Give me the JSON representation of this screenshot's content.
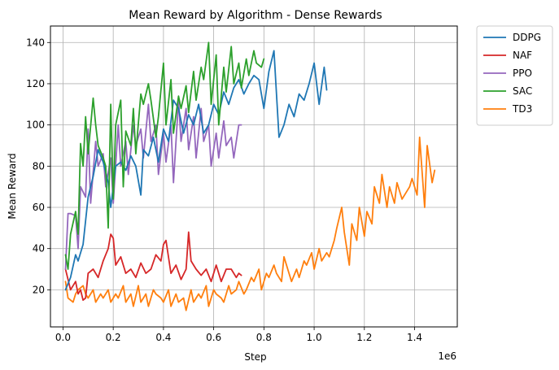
{
  "chart_data": {
    "type": "line",
    "title": "Mean Reward by Algorithm - Dense Rewards",
    "xlabel": "Step",
    "ylabel": "Mean Reward",
    "x_offset_label": "1e6",
    "xlim": [
      -0.05,
      1.57
    ],
    "ylim": [
      2,
      148
    ],
    "xticks": [
      0.0,
      0.2,
      0.4,
      0.6,
      0.8,
      1.0,
      1.2,
      1.4
    ],
    "xtick_labels": [
      "0.0",
      "0.2",
      "0.4",
      "0.6",
      "0.8",
      "1.0",
      "1.2",
      "1.4"
    ],
    "yticks": [
      20,
      40,
      60,
      80,
      100,
      120,
      140
    ],
    "ytick_labels": [
      "20",
      "40",
      "60",
      "80",
      "100",
      "120",
      "140"
    ],
    "grid": true,
    "legend_position": "outside-top-right",
    "series": [
      {
        "name": "DDPG",
        "color": "#1f77b4",
        "x": [
          0.01,
          0.03,
          0.05,
          0.06,
          0.08,
          0.1,
          0.12,
          0.14,
          0.16,
          0.18,
          0.19,
          0.21,
          0.23,
          0.25,
          0.27,
          0.29,
          0.31,
          0.32,
          0.34,
          0.36,
          0.38,
          0.4,
          0.42,
          0.44,
          0.46,
          0.48,
          0.5,
          0.52,
          0.54,
          0.56,
          0.58,
          0.6,
          0.62,
          0.64,
          0.66,
          0.68,
          0.7,
          0.72,
          0.74,
          0.76,
          0.78,
          0.8,
          0.82,
          0.84,
          0.86,
          0.88,
          0.9,
          0.92,
          0.94,
          0.96,
          0.98,
          1.0,
          1.02,
          1.04,
          1.05
        ],
        "y": [
          20,
          26,
          37,
          34,
          42,
          65,
          75,
          88,
          82,
          72,
          60,
          80,
          82,
          78,
          85,
          80,
          66,
          88,
          85,
          94,
          82,
          98,
          92,
          112,
          108,
          96,
          105,
          100,
          110,
          96,
          100,
          110,
          105,
          116,
          110,
          118,
          122,
          115,
          120,
          124,
          122,
          108,
          126,
          136,
          94,
          100,
          110,
          104,
          115,
          112,
          120,
          130,
          110,
          128,
          117
        ]
      },
      {
        "name": "NAF",
        "color": "#d62728",
        "x": [
          0.01,
          0.02,
          0.03,
          0.04,
          0.05,
          0.06,
          0.07,
          0.08,
          0.09,
          0.1,
          0.12,
          0.14,
          0.16,
          0.18,
          0.19,
          0.2,
          0.21,
          0.23,
          0.25,
          0.27,
          0.29,
          0.31,
          0.33,
          0.35,
          0.37,
          0.39,
          0.4,
          0.41,
          0.43,
          0.45,
          0.47,
          0.49,
          0.5,
          0.51,
          0.53,
          0.55,
          0.57,
          0.59,
          0.61,
          0.63,
          0.65,
          0.67,
          0.69,
          0.7,
          0.71
        ],
        "y": [
          30,
          25,
          20,
          22,
          24,
          18,
          20,
          15,
          16,
          28,
          30,
          26,
          34,
          40,
          47,
          45,
          32,
          36,
          28,
          30,
          26,
          33,
          28,
          30,
          37,
          34,
          42,
          44,
          28,
          32,
          25,
          30,
          48,
          34,
          30,
          27,
          30,
          24,
          32,
          24,
          30,
          30,
          26,
          28,
          27
        ]
      },
      {
        "name": "PPO",
        "color": "#9467bd",
        "x": [
          0.01,
          0.02,
          0.03,
          0.05,
          0.06,
          0.07,
          0.09,
          0.1,
          0.11,
          0.13,
          0.14,
          0.16,
          0.17,
          0.19,
          0.2,
          0.22,
          0.23,
          0.25,
          0.26,
          0.28,
          0.29,
          0.31,
          0.32,
          0.34,
          0.35,
          0.37,
          0.38,
          0.4,
          0.41,
          0.43,
          0.44,
          0.46,
          0.47,
          0.49,
          0.5,
          0.52,
          0.53,
          0.55,
          0.56,
          0.58,
          0.59,
          0.61,
          0.62,
          0.64,
          0.65,
          0.67,
          0.68,
          0.7,
          0.71
        ],
        "y": [
          30,
          57,
          57,
          56,
          40,
          70,
          65,
          98,
          62,
          92,
          80,
          86,
          70,
          84,
          62,
          100,
          80,
          92,
          76,
          100,
          90,
          98,
          84,
          110,
          92,
          100,
          76,
          96,
          82,
          100,
          72,
          112,
          92,
          108,
          88,
          104,
          84,
          108,
          92,
          100,
          80,
          96,
          84,
          102,
          90,
          94,
          84,
          100,
          100
        ]
      },
      {
        "name": "SAC",
        "color": "#2ca02c",
        "x": [
          0.01,
          0.02,
          0.03,
          0.05,
          0.06,
          0.07,
          0.08,
          0.09,
          0.1,
          0.12,
          0.13,
          0.14,
          0.16,
          0.17,
          0.18,
          0.19,
          0.2,
          0.21,
          0.23,
          0.24,
          0.25,
          0.27,
          0.28,
          0.29,
          0.31,
          0.32,
          0.34,
          0.35,
          0.37,
          0.38,
          0.4,
          0.41,
          0.43,
          0.44,
          0.46,
          0.47,
          0.49,
          0.5,
          0.52,
          0.53,
          0.55,
          0.56,
          0.58,
          0.59,
          0.61,
          0.62,
          0.64,
          0.65,
          0.67,
          0.68,
          0.7,
          0.71,
          0.73,
          0.74,
          0.76,
          0.77,
          0.79,
          0.8
        ],
        "y": [
          37,
          30,
          47,
          58,
          47,
          91,
          80,
          104,
          86,
          113,
          100,
          90,
          84,
          80,
          50,
          110,
          64,
          100,
          112,
          70,
          97,
          90,
          108,
          86,
          115,
          110,
          120,
          112,
          94,
          104,
          130,
          100,
          122,
          96,
          114,
          108,
          119,
          106,
          126,
          112,
          128,
          122,
          140,
          110,
          134,
          100,
          128,
          116,
          138,
          120,
          130,
          118,
          132,
          124,
          136,
          130,
          128,
          132
        ]
      },
      {
        "name": "TD3",
        "color": "#ff7f0e",
        "x": [
          0.01,
          0.02,
          0.04,
          0.05,
          0.06,
          0.08,
          0.09,
          0.1,
          0.12,
          0.13,
          0.15,
          0.16,
          0.18,
          0.19,
          0.21,
          0.22,
          0.24,
          0.25,
          0.27,
          0.28,
          0.3,
          0.31,
          0.33,
          0.34,
          0.36,
          0.37,
          0.39,
          0.4,
          0.42,
          0.43,
          0.45,
          0.46,
          0.48,
          0.49,
          0.51,
          0.52,
          0.54,
          0.55,
          0.57,
          0.58,
          0.6,
          0.61,
          0.63,
          0.64,
          0.66,
          0.67,
          0.69,
          0.7,
          0.72,
          0.73,
          0.75,
          0.76,
          0.78,
          0.79,
          0.81,
          0.82,
          0.84,
          0.85,
          0.87,
          0.88,
          0.9,
          0.91,
          0.93,
          0.94,
          0.96,
          0.97,
          0.99,
          1.0,
          1.02,
          1.03,
          1.05,
          1.06,
          1.08,
          1.09,
          1.11,
          1.12,
          1.14,
          1.15,
          1.17,
          1.18,
          1.2,
          1.21,
          1.23,
          1.24,
          1.26,
          1.27,
          1.29,
          1.3,
          1.32,
          1.33,
          1.35,
          1.36,
          1.38,
          1.39,
          1.41,
          1.42,
          1.44,
          1.45,
          1.47,
          1.48
        ],
        "y": [
          24,
          16,
          14,
          18,
          20,
          22,
          18,
          16,
          20,
          14,
          18,
          16,
          20,
          14,
          18,
          16,
          22,
          14,
          18,
          12,
          22,
          14,
          18,
          12,
          20,
          18,
          16,
          14,
          20,
          12,
          18,
          14,
          16,
          10,
          20,
          14,
          18,
          16,
          22,
          12,
          20,
          18,
          16,
          14,
          22,
          18,
          20,
          24,
          18,
          20,
          26,
          24,
          30,
          20,
          28,
          26,
          32,
          28,
          24,
          36,
          28,
          24,
          30,
          26,
          34,
          32,
          38,
          30,
          40,
          34,
          38,
          36,
          44,
          50,
          60,
          48,
          32,
          52,
          44,
          60,
          46,
          58,
          52,
          70,
          62,
          76,
          60,
          70,
          62,
          72,
          64,
          66,
          70,
          74,
          66,
          94,
          60,
          90,
          72,
          78
        ]
      }
    ]
  }
}
